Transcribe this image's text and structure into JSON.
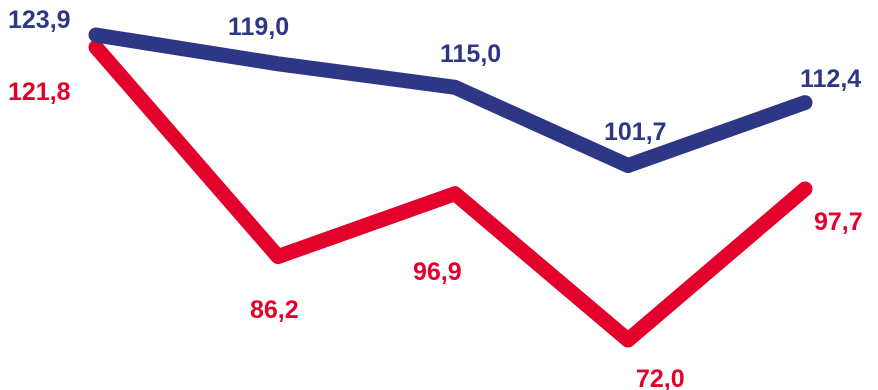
{
  "chart_data": {
    "type": "line",
    "categories": [
      "",
      "",
      "",
      "",
      ""
    ],
    "series": [
      {
        "name": "",
        "color": "#2d3785",
        "values": [
          123.9,
          119.0,
          115.0,
          101.7,
          112.4
        ],
        "labels": [
          "123,9",
          "119,0",
          "115,0",
          "101,7",
          "112,4"
        ]
      },
      {
        "name": "",
        "color": "#e3002b",
        "values": [
          121.8,
          86.2,
          96.9,
          72.0,
          97.7
        ],
        "labels": [
          "121,8",
          "86,2",
          "96,9",
          "72,0",
          "97,7"
        ]
      }
    ],
    "title": "",
    "xlabel": "",
    "ylabel": "",
    "ylim": [
      70,
      125
    ],
    "grid": false,
    "legend": "none"
  }
}
